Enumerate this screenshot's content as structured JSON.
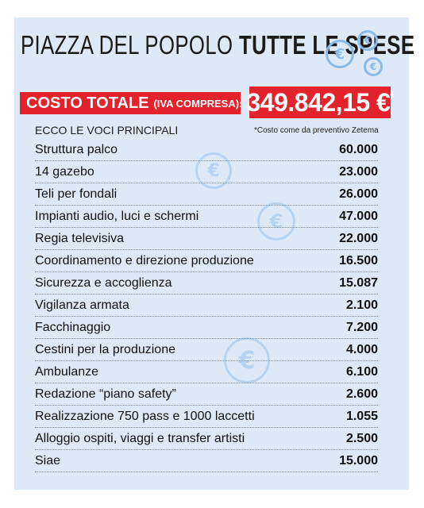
{
  "header": {
    "title_regular": "PIAZZA DEL POPOLO",
    "title_bold": "TUTTE LE SPESE",
    "currency_symbol": "€"
  },
  "total": {
    "label": "COSTO TOTALE",
    "label_note": "(IVA COMPRESA):",
    "value": "349.842,15 €",
    "value_mark": "*"
  },
  "subheader": {
    "left": "ECCO LE VOCI PRINCIPALI",
    "note": "*Costo come da preventivo Zetema"
  },
  "items": [
    {
      "label": "Struttura palco",
      "value": "60.000"
    },
    {
      "label": "14 gazebo",
      "value": "23.000"
    },
    {
      "label": "Teli per fondali",
      "value": "26.000"
    },
    {
      "label": "Impianti audio, luci e schermi",
      "value": "47.000"
    },
    {
      "label": "Regia televisiva",
      "value": "22.000"
    },
    {
      "label": "Coordinamento e direzione produzione",
      "value": "16.500"
    },
    {
      "label": "Sicurezza e accoglienza",
      "value": "15.087"
    },
    {
      "label": "Vigilanza armata",
      "value": "2.100"
    },
    {
      "label": "Facchinaggio",
      "value": "7.200"
    },
    {
      "label": "Cestini per la produzione",
      "value": "4.000"
    },
    {
      "label": "Ambulanze",
      "value": "6.100"
    },
    {
      "label": "Redazione “piano safety”",
      "value": "2.600"
    },
    {
      "label": "Realizzazione 750 pass e 1000 laccetti",
      "value": "1.055"
    },
    {
      "label": "Alloggio ospiti, viaggi e transfer artisti",
      "value": "2.500"
    },
    {
      "label": "Siae",
      "value": "15.000"
    }
  ],
  "colors": {
    "panel": "#dde9f6",
    "accent_red": "#e3222b",
    "coin_blue": "#8bb9e8"
  }
}
